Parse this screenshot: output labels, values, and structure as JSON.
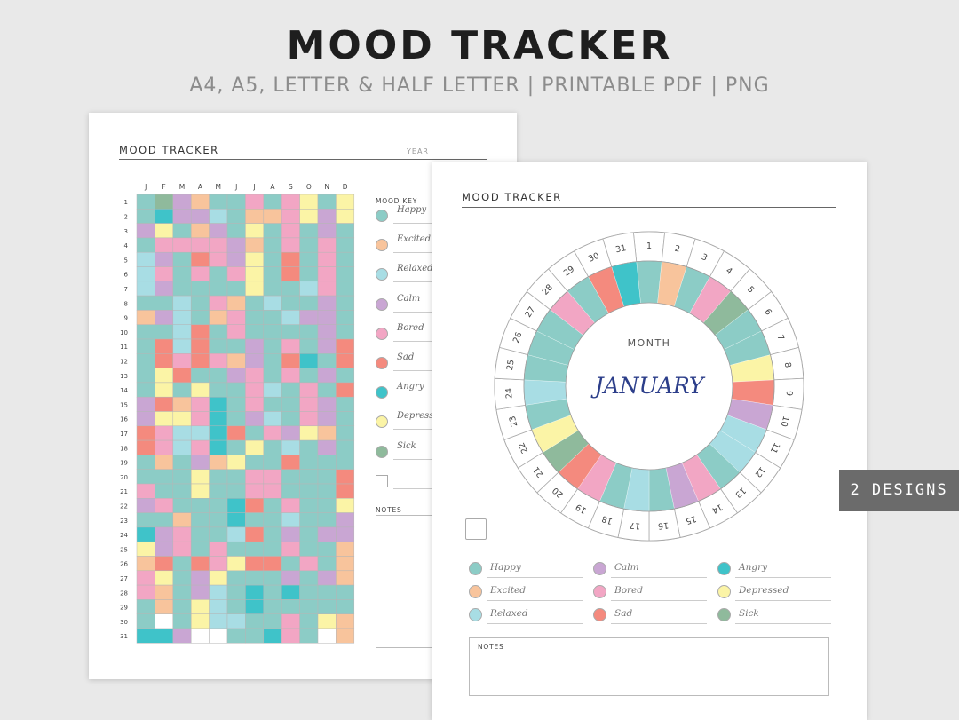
{
  "header": {
    "title": "MOOD TRACKER",
    "subtitle": "A4, A5, LETTER & HALF LETTER | PRINTABLE PDF | PNG"
  },
  "badge": "2 DESIGNS",
  "colors": {
    "happy": "#8cccc6",
    "excited": "#f8c49c",
    "relaxed": "#a8dde4",
    "calm": "#c9a6d3",
    "bored": "#f2a6c4",
    "sad": "#f48a7e",
    "angry": "#3fc3c9",
    "depressed": "#fbf4a6",
    "sick": "#8fba9c",
    "blank": "#ffffff"
  },
  "yearly": {
    "title": "MOOD TRACKER",
    "year_label": "YEAR",
    "months": [
      "J",
      "F",
      "M",
      "A",
      "M",
      "J",
      "J",
      "A",
      "S",
      "O",
      "N",
      "D"
    ],
    "days": [
      "1",
      "2",
      "3",
      "4",
      "5",
      "6",
      "7",
      "8",
      "9",
      "10",
      "11",
      "12",
      "13",
      "14",
      "15",
      "16",
      "17",
      "18",
      "19",
      "20",
      "21",
      "22",
      "23",
      "24",
      "25",
      "26",
      "27",
      "28",
      "29",
      "30",
      "31"
    ],
    "mood_key_label": "MOOD KEY",
    "mood_key": [
      {
        "label": "Happy",
        "color": "happy"
      },
      {
        "label": "Excited",
        "color": "excited"
      },
      {
        "label": "Relaxed",
        "color": "relaxed"
      },
      {
        "label": "Calm",
        "color": "calm"
      },
      {
        "label": "Bored",
        "color": "bored"
      },
      {
        "label": "Sad",
        "color": "sad"
      },
      {
        "label": "Angry",
        "color": "angry"
      },
      {
        "label": "Depressed",
        "color": "depressed"
      },
      {
        "label": "Sick",
        "color": "sick"
      },
      {
        "label": "",
        "color": "blank"
      }
    ],
    "notes_label": "NOTES",
    "grid": [
      "HSCEHHBHBDHD",
      "HiCCRHEEBDCD",
      "CDHECHDHBHCH",
      "HBBBBCEHBHBH",
      "RCHABCDHAHBH",
      "RBHBHBDHAHBH",
      "RCHHHHDHHRBH",
      "HHRHBEHRHHCH",
      "ECRHEBHHRCCH",
      "HHRAHBHHHHCH",
      "HARAHHCHBHCA",
      "HABABECHAiHA",
      "HDAHHCBHBHCH",
      "HDHDHHBRHBHA",
      "CAEBiHBHHBCH",
      "CDDBiHCRHBCH",
      "ABRRiAHBCDEH",
      "ABRBiHDHRHCH",
      "HEHCEDHHAHHH",
      "HHHDHHBBHHHA",
      "BHHDHHBBHHHA",
      "CBHHHiAHBHHD",
      "HHEHHiHHRHHC",
      "iCBHHRAHCHCC",
      "DCBHBHHHBHHE",
      "EAHABDAAHBHE",
      "BDHCDHHHCHCE",
      "BEHCRHiHiHHH",
      "HEHDRHiHHHHH",
      "HxHDRRHHBHDE",
      "iiCxxHHiBHxE"
    ]
  },
  "monthly": {
    "title": "MOOD TRACKER",
    "month_label": "MONTH",
    "month_value": "JANUARY",
    "days": [
      "1",
      "2",
      "3",
      "4",
      "5",
      "6",
      "7",
      "8",
      "9",
      "10",
      "11",
      "12",
      "13",
      "14",
      "15",
      "16",
      "17",
      "18",
      "19",
      "20",
      "21",
      "22",
      "23",
      "24",
      "25",
      "26",
      "27",
      "28",
      "29",
      "30",
      "31"
    ],
    "ring": [
      "happy",
      "excited",
      "happy",
      "bored",
      "sick",
      "happy",
      "happy",
      "depressed",
      "sad",
      "calm",
      "relaxed",
      "relaxed",
      "happy",
      "bored",
      "calm",
      "happy",
      "relaxed",
      "happy",
      "bored",
      "sad",
      "sick",
      "depressed",
      "happy",
      "relaxed",
      "happy",
      "happy",
      "happy",
      "bored",
      "happy",
      "sad",
      "angry"
    ],
    "legend": [
      {
        "label": "Happy",
        "color": "happy"
      },
      {
        "label": "Calm",
        "color": "calm"
      },
      {
        "label": "Angry",
        "color": "angry"
      },
      {
        "label": "Excited",
        "color": "excited"
      },
      {
        "label": "Bored",
        "color": "bored"
      },
      {
        "label": "Depressed",
        "color": "depressed"
      },
      {
        "label": "Relaxed",
        "color": "relaxed"
      },
      {
        "label": "Sad",
        "color": "sad"
      },
      {
        "label": "Sick",
        "color": "sick"
      }
    ],
    "notes_label": "NOTES"
  }
}
